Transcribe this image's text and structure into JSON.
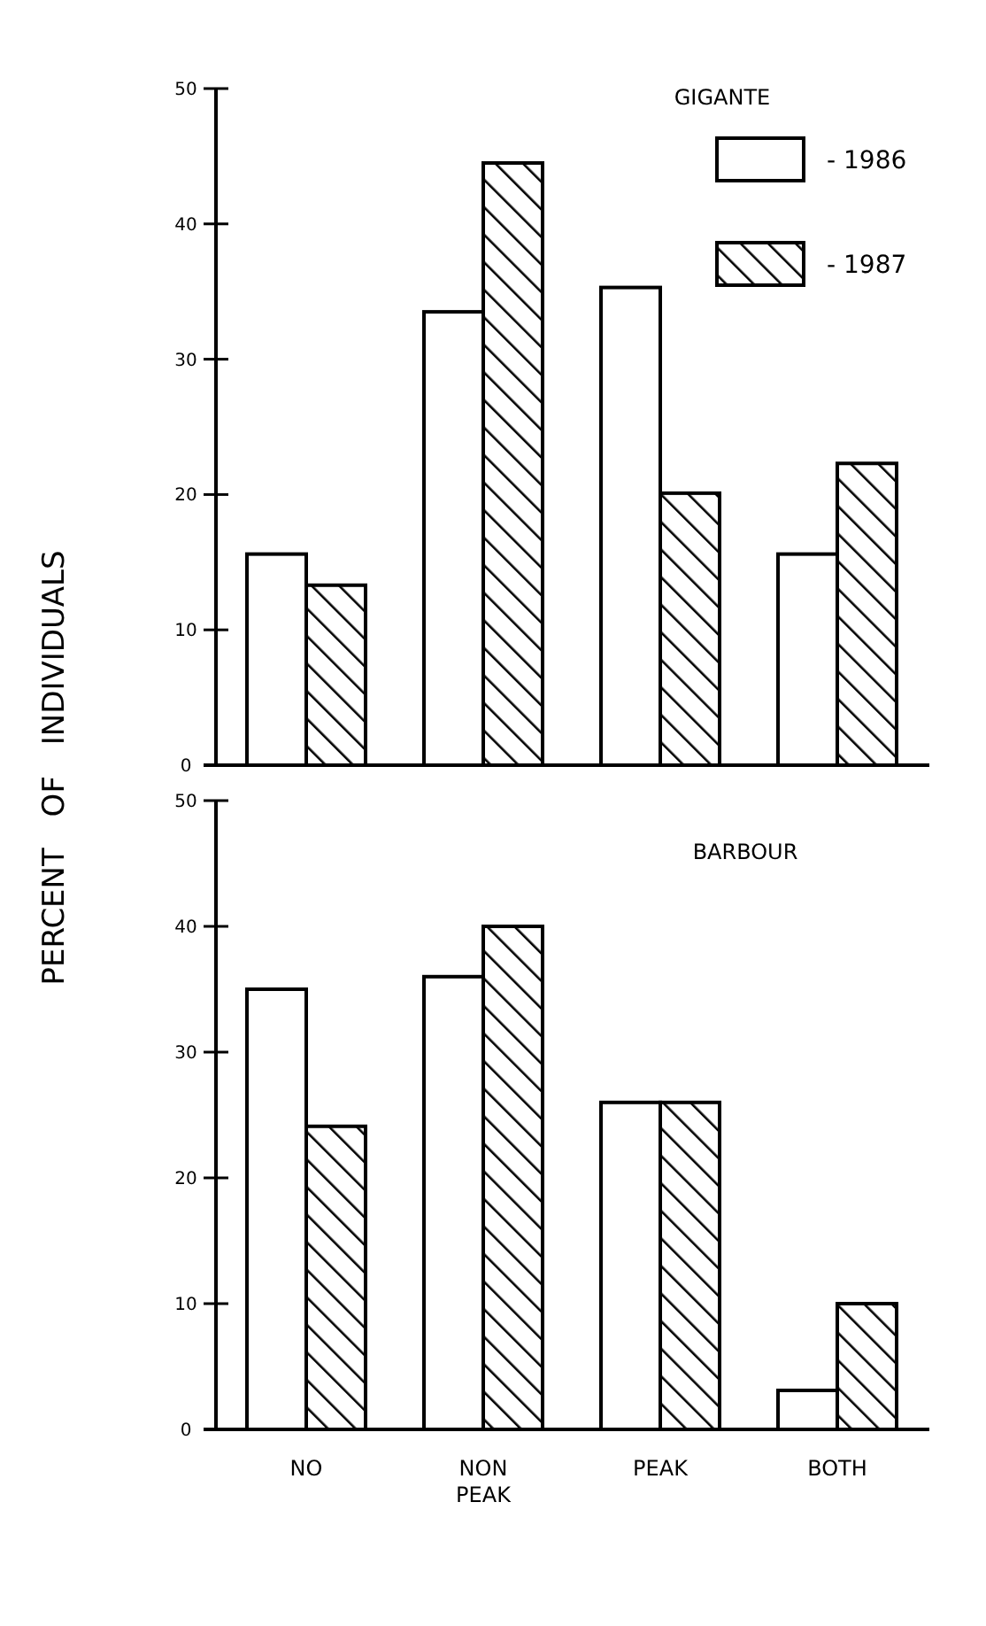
{
  "chart_data": [
    {
      "type": "bar",
      "title": "GIGANTE",
      "ylabel": "PERCENT OF INDIVIDUALS",
      "categories": [
        null,
        null,
        null,
        null
      ],
      "series": [
        {
          "name": "- 1986",
          "color": "#ffffff",
          "values": [
            15.6,
            33.5,
            35.3,
            15.6
          ]
        },
        {
          "name": "- 1987",
          "color": "#000000",
          "values": [
            13.3,
            44.5,
            20.1,
            22.3
          ]
        }
      ],
      "ylim": [
        0,
        50
      ],
      "yticks": [
        0,
        10,
        20,
        30,
        40,
        50
      ],
      "grid": false,
      "legend": "top right",
      "tick_labels": "y"
    },
    {
      "type": "bar",
      "title": "BARBOUR",
      "categories": [
        "NO",
        "NON PEAK",
        "PEAK",
        "BOTH"
      ],
      "series": [
        {
          "color": "#ffffff",
          "values": [
            35,
            36,
            26,
            3.1
          ]
        },
        {
          "color": "#000000",
          "values": [
            24.1,
            40,
            26,
            10
          ]
        }
      ],
      "ylim": [
        0,
        50
      ],
      "yticks": [
        0,
        10,
        20,
        30,
        40,
        50
      ],
      "grid": false
    }
  ]
}
